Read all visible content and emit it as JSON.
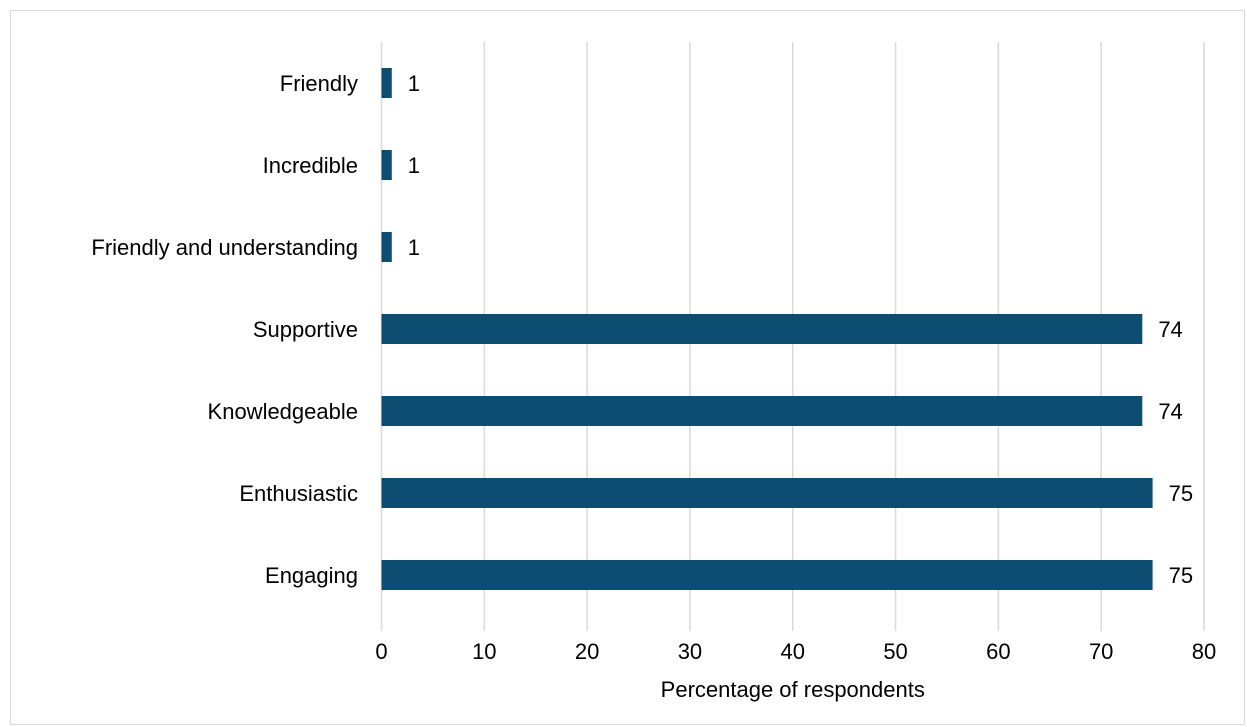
{
  "chart_data": {
    "type": "bar",
    "orientation": "horizontal",
    "categories": [
      "Friendly",
      "Incredible",
      "Friendly and understanding",
      "Supportive",
      "Knowledgeable",
      "Enthusiastic",
      "Engaging"
    ],
    "values": [
      1,
      1,
      1,
      74,
      74,
      75,
      75
    ],
    "data_labels": [
      "1",
      "1",
      "1",
      "74",
      "74",
      "75",
      "75"
    ],
    "xlabel": "Percentage of respondents",
    "ylabel": "",
    "xlim": [
      0,
      80
    ],
    "x_ticks": [
      0,
      10,
      20,
      30,
      40,
      50,
      60,
      70,
      80
    ],
    "x_tick_labels": [
      "0",
      "10",
      "20",
      "30",
      "40",
      "50",
      "60",
      "70",
      "80"
    ],
    "grid": "vertical",
    "legend": "none",
    "colors": {
      "bar": "#0e4d72",
      "grid": "#d9d9d9",
      "border": "#d9d9d9",
      "text": "#000000"
    }
  }
}
